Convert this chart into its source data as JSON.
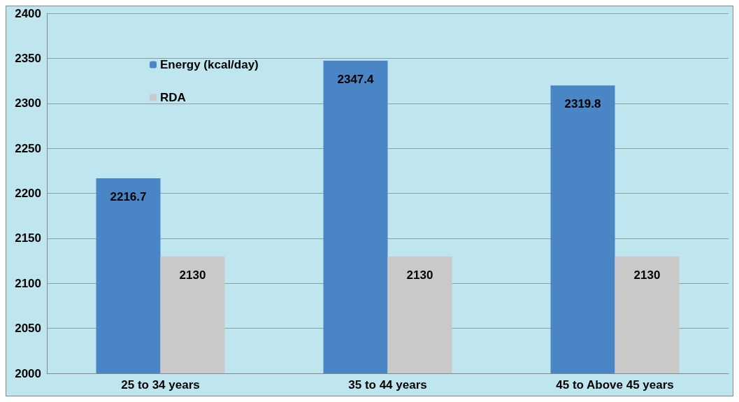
{
  "chart_data": {
    "type": "bar",
    "categories": [
      "25 to 34 years",
      "35 to 44 years",
      "45 to Above 45 years"
    ],
    "series": [
      {
        "name": "Energy (kcal/day)",
        "color": "#4a85c6",
        "values": [
          2216.7,
          2347.4,
          2319.8
        ]
      },
      {
        "name": "RDA",
        "color": "#c9c9c9",
        "values": [
          2130,
          2130,
          2130
        ]
      }
    ],
    "ylim": [
      2000,
      2400
    ],
    "yticks": [
      2000,
      2050,
      2100,
      2150,
      2200,
      2250,
      2300,
      2350,
      2400
    ],
    "grid": "y",
    "legend": "top left",
    "data_labels": true
  }
}
